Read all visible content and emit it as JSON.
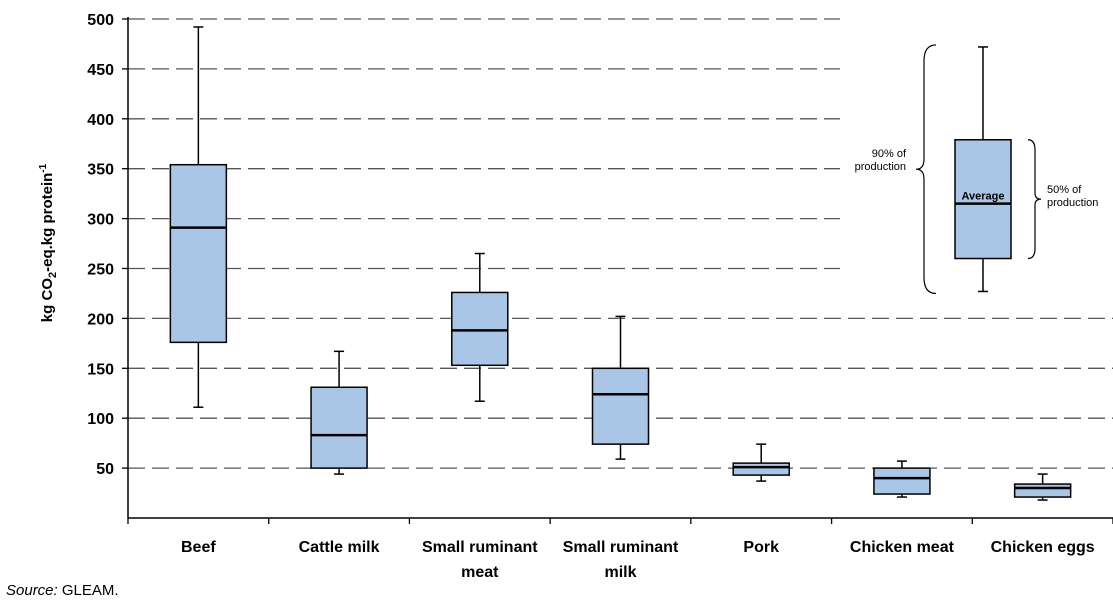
{
  "chart_data": {
    "type": "box",
    "ylabel": "kg CO2-eq.kg protein-1",
    "ylabel_parts": {
      "pre": "kg CO",
      "sub": "2",
      "mid": "-eq.kg protein",
      "sup": "-1"
    },
    "ylim": [
      0,
      500
    ],
    "yticks": [
      50,
      100,
      150,
      200,
      250,
      300,
      350,
      400,
      450,
      500
    ],
    "grid": "horizontal dashed",
    "categories": [
      {
        "label_lines": [
          "Beef"
        ],
        "whisker_low": 111,
        "q1": 176,
        "median": 291,
        "q3": 354,
        "whisker_high": 492
      },
      {
        "label_lines": [
          "Cattle milk"
        ],
        "whisker_low": 44,
        "q1": 50,
        "median": 83,
        "q3": 131,
        "whisker_high": 167
      },
      {
        "label_lines": [
          "Small ruminant",
          "meat"
        ],
        "whisker_low": 117,
        "q1": 153,
        "median": 188,
        "q3": 226,
        "whisker_high": 265
      },
      {
        "label_lines": [
          "Small ruminant",
          "milk"
        ],
        "whisker_low": 59,
        "q1": 74,
        "median": 124,
        "q3": 150,
        "whisker_high": 202
      },
      {
        "label_lines": [
          "Pork"
        ],
        "whisker_low": 37,
        "q1": 43,
        "median": 51,
        "q3": 55,
        "whisker_high": 74
      },
      {
        "label_lines": [
          "Chicken meat"
        ],
        "whisker_low": 21,
        "q1": 24,
        "median": 40,
        "q3": 50,
        "whisker_high": 57
      },
      {
        "label_lines": [
          "Chicken eggs"
        ],
        "whisker_low": 18,
        "q1": 21,
        "median": 30,
        "q3": 34,
        "whisker_high": 44
      }
    ],
    "legend": {
      "placement": "top-right",
      "whisker_low": 227,
      "q1": 260,
      "median": 315,
      "q3": 379,
      "whisker_high": 472,
      "label_90": [
        "90% of",
        "production"
      ],
      "label_50": [
        "50% of",
        "production"
      ],
      "label_avg": "Average"
    },
    "colors": {
      "box_fill": "#a9c6e6",
      "stroke": "#000000",
      "grid": "#555555"
    }
  },
  "source": {
    "prefix": "Source:",
    "text": " GLEAM."
  }
}
